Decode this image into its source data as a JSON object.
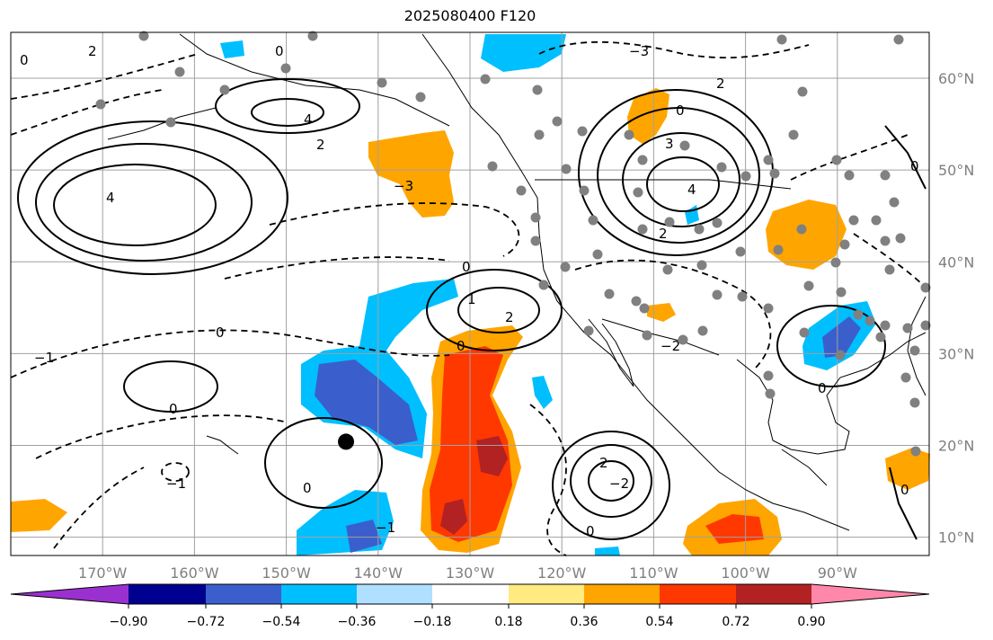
{
  "title": "2025080400 F120",
  "map": {
    "lon_range": [
      -180,
      -80
    ],
    "lat_range": [
      8,
      65
    ],
    "lon_ticks": [
      -170,
      -160,
      -150,
      -140,
      -130,
      -120,
      -110,
      -100,
      -90
    ],
    "lat_ticks": [
      10,
      20,
      30,
      40,
      50,
      60
    ],
    "lon_labels": [
      "170°W",
      "160°W",
      "150°W",
      "140°W",
      "130°W",
      "120°W",
      "110°W",
      "100°W",
      "90°W"
    ],
    "lat_labels": [
      "10°N",
      "20°N",
      "30°N",
      "40°N",
      "50°N",
      "60°N"
    ],
    "grid": true,
    "label_color": "#7f7f7f"
  },
  "colorbar": {
    "ticks": [
      "−0.90",
      "−0.72",
      "−0.54",
      "−0.36",
      "−0.18",
      "0.18",
      "0.36",
      "0.54",
      "0.72",
      "0.90"
    ],
    "colors": [
      "#9b30d0",
      "#000090",
      "#3a5fcd",
      "#00bfff",
      "#b0e0ff",
      "#ffffff",
      "#ffeb80",
      "#ffa500",
      "#ff3800",
      "#b22222",
      "#ff88aa"
    ]
  },
  "contour_labels": [
    "0",
    "1",
    "2",
    "3",
    "4",
    "−1",
    "−2",
    "−3"
  ],
  "marker": {
    "lon": -143.5,
    "lat": 20.4,
    "color": "#000000"
  }
}
